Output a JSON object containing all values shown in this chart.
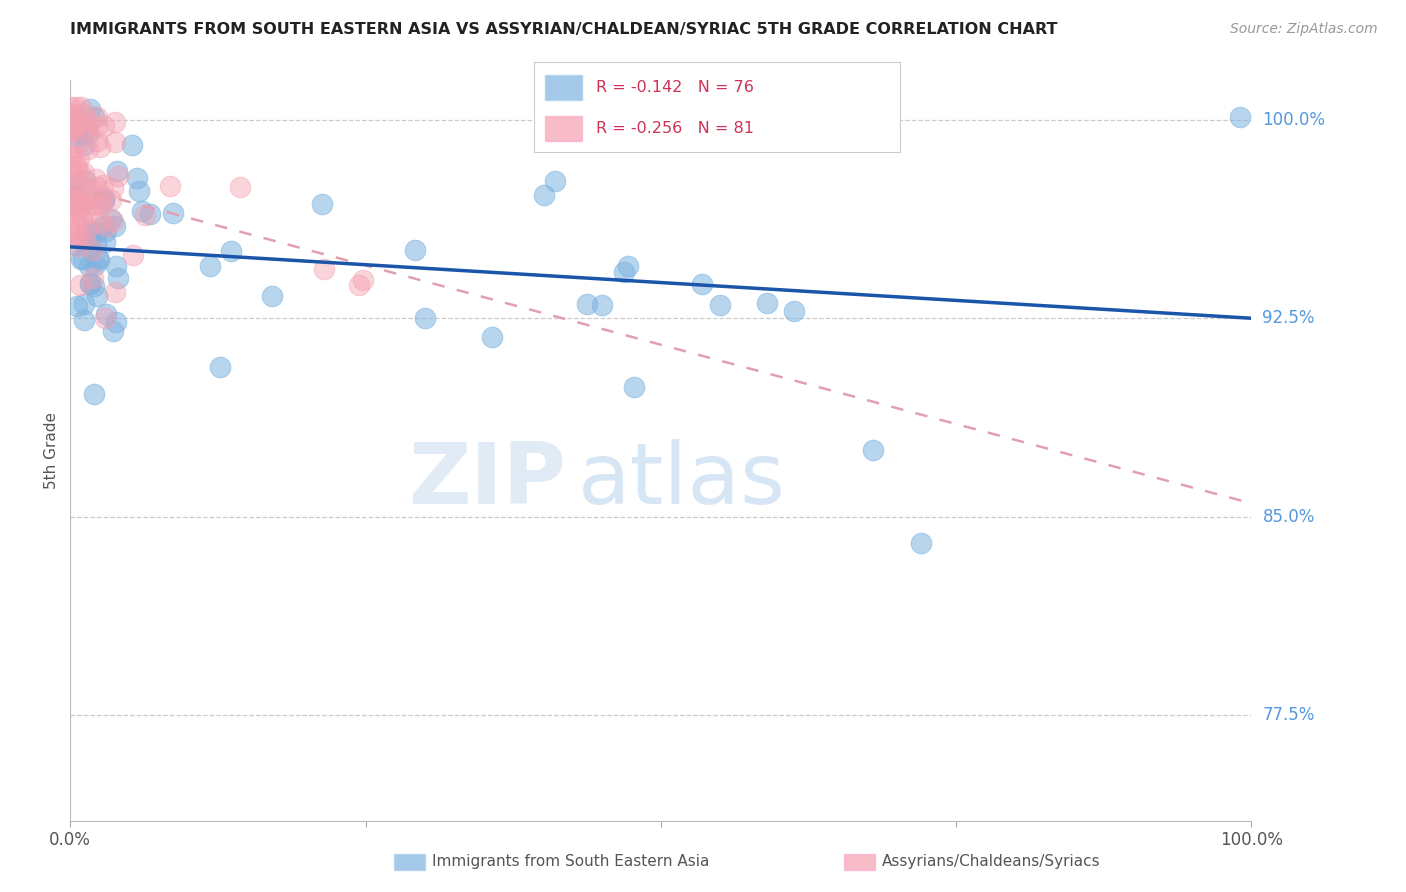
{
  "title": "IMMIGRANTS FROM SOUTH EASTERN ASIA VS ASSYRIAN/CHALDEAN/SYRIAC 5TH GRADE CORRELATION CHART",
  "source": "Source: ZipAtlas.com",
  "ylabel": "5th Grade",
  "ytick_labels": [
    "77.5%",
    "85.0%",
    "92.5%",
    "100.0%"
  ],
  "ytick_values": [
    0.775,
    0.85,
    0.925,
    1.0
  ],
  "legend_blue_label": "Immigrants from South Eastern Asia",
  "legend_pink_label": "Assyrians/Chaldeans/Syriacs",
  "R_blue": -0.142,
  "N_blue": 76,
  "R_pink": -0.256,
  "N_pink": 81,
  "blue_color": "#7EB3E0",
  "pink_color": "#F4A0B0",
  "blue_line_color": "#1A55AA",
  "pink_line_color": "#E87090",
  "pink_dash_color": "#E0A0B0",
  "watermark_zip": "ZIP",
  "watermark_atlas": "atlas",
  "xlim": [
    0.0,
    1.0
  ],
  "ylim": [
    0.735,
    1.015
  ],
  "blue_trend_x0": 0.0,
  "blue_trend_y0": 0.952,
  "blue_trend_x1": 1.0,
  "blue_trend_y1": 0.925,
  "pink_trend_x0": 0.0,
  "pink_trend_y0": 0.975,
  "pink_trend_x1": 1.0,
  "pink_trend_y1": 0.855
}
